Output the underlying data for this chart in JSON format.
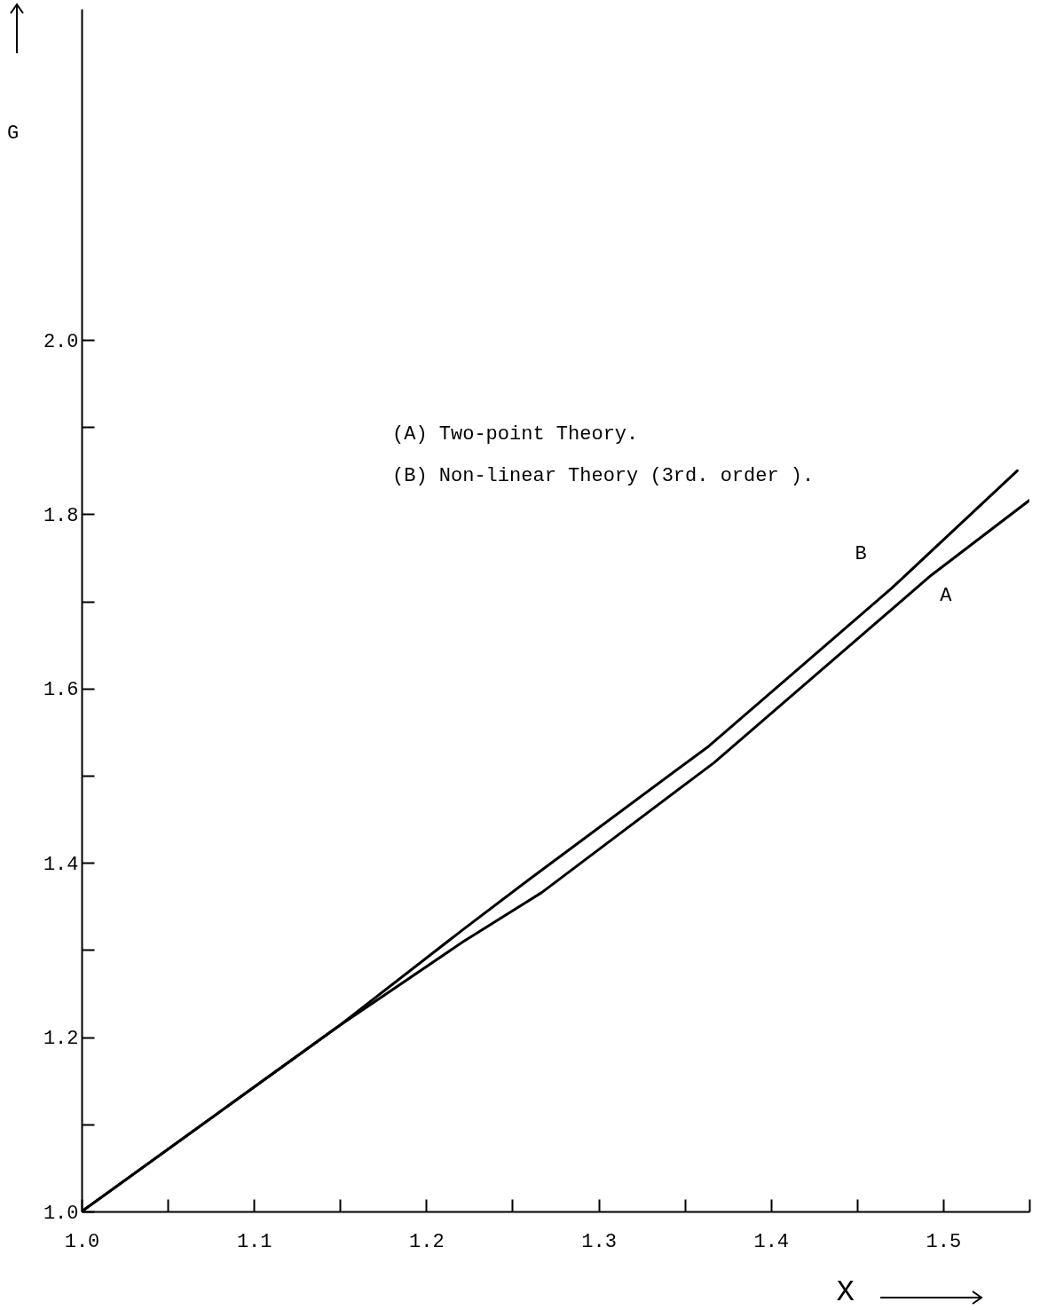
{
  "chart_data": {
    "type": "line",
    "xlabel": "X",
    "ylabel": "G",
    "annotations": [
      "(A) Two-point Theory.",
      "(B) Non-linear Theory (3rd. order )."
    ],
    "series": [
      {
        "name": "A",
        "color": "#000000",
        "x": [
          1.0,
          1.148,
          1.221,
          1.267,
          1.367,
          1.493,
          1.55
        ],
        "values": [
          1.0,
          1.211,
          1.309,
          1.366,
          1.515,
          1.73,
          1.816
        ]
      },
      {
        "name": "B",
        "color": "#000000",
        "x": [
          1.0,
          1.148,
          1.221,
          1.261,
          1.364,
          1.47,
          1.543
        ],
        "values": [
          1.0,
          1.211,
          1.323,
          1.383,
          1.534,
          1.715,
          1.85
        ]
      }
    ],
    "xlim": [
      1.0,
      1.55
    ],
    "ylim": [
      1.0,
      2.38
    ],
    "xticks": [
      {
        "value": 1.0,
        "label": "1.0"
      },
      {
        "value": 1.05,
        "label": null
      },
      1.1,
      {
        "value": 1.15,
        "label": null
      },
      1.2,
      {
        "value": 1.25,
        "label": null
      },
      1.3,
      {
        "value": 1.35,
        "label": null
      },
      1.4,
      {
        "value": 1.45,
        "label": null
      },
      1.5,
      {
        "value": 1.55,
        "label": null
      }
    ],
    "yticks": [
      {
        "value": 1.0,
        "label": "1.0"
      },
      {
        "value": 1.1,
        "label": null
      },
      1.2,
      {
        "value": 1.3,
        "label": null
      },
      1.4,
      {
        "value": 1.5,
        "label": null
      },
      1.6,
      {
        "value": 1.7,
        "label": null
      },
      1.8,
      {
        "value": 1.9,
        "label": null
      },
      {
        "value": 2.0,
        "label": "2.0"
      }
    ],
    "line_style": "solid"
  }
}
